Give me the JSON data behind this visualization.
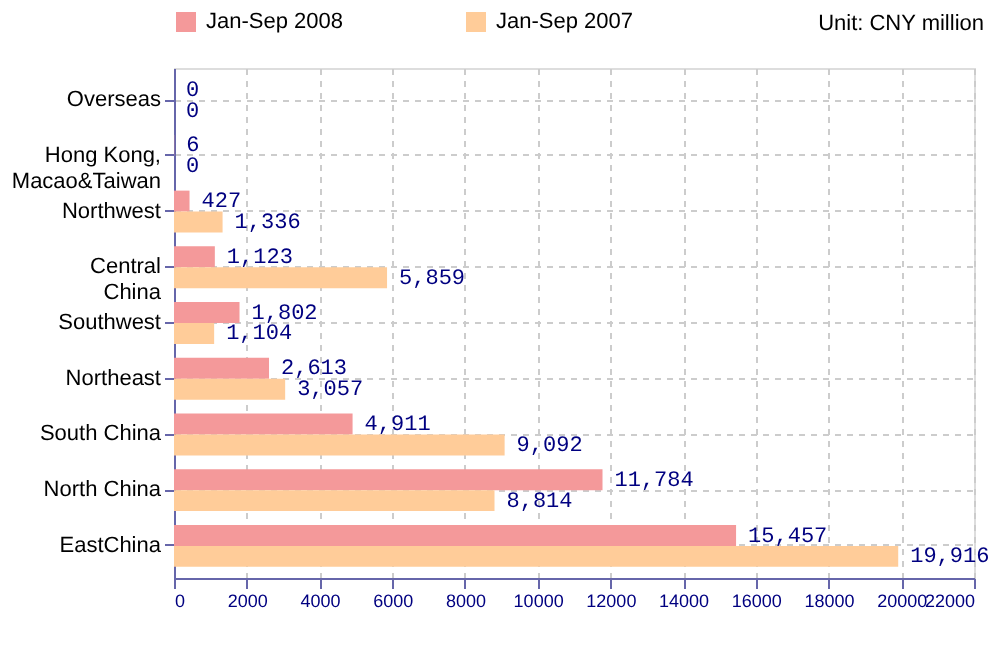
{
  "chart_data": {
    "type": "bar",
    "orientation": "horizontal",
    "categories": [
      "Overseas",
      "Hong Kong,\nMacao&Taiwan",
      "Northwest",
      "Central\nChina",
      "Southwest",
      "Northeast",
      "South China",
      "North China",
      "EastChina"
    ],
    "series": [
      {
        "name": "Jan-Sep 2008",
        "color": "#f4999a",
        "values": [
          0,
          6,
          427,
          1123,
          1802,
          2613,
          4911,
          11784,
          15457
        ],
        "value_labels": [
          "0",
          "6",
          "427",
          "1,123",
          "1,802",
          "2,613",
          "4,911",
          "11,784",
          "15,457"
        ]
      },
      {
        "name": "Jan-Sep 2007",
        "color": "#ffcc99",
        "values": [
          0,
          0,
          1336,
          5859,
          1104,
          3057,
          9092,
          8814,
          19916
        ],
        "value_labels": [
          "0",
          "0",
          "1,336",
          "5,859",
          "1,104",
          "3,057",
          "9,092",
          "8,814",
          "19,916"
        ]
      }
    ],
    "xlim": [
      0,
      22000
    ],
    "xticks": [
      0,
      2000,
      4000,
      6000,
      8000,
      10000,
      12000,
      14000,
      16000,
      18000,
      20000,
      22000
    ],
    "grid": true,
    "legend": "top",
    "annotations": [
      "Unit: CNY million"
    ]
  }
}
